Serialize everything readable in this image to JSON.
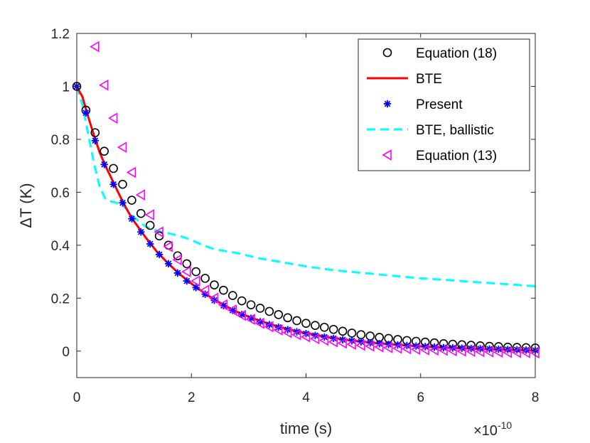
{
  "chart_data": {
    "type": "line",
    "xlabel": "time (s)",
    "ylabel": "ΔT (K)",
    "x_exponent": {
      "base": "×10",
      "power": "-10"
    },
    "xlim": [
      0,
      8
    ],
    "ylim": [
      -0.1,
      1.2
    ],
    "xticks": [
      0,
      2,
      4,
      6,
      8
    ],
    "xtick_labels": [
      "0",
      "2",
      "4",
      "6",
      "8"
    ],
    "yticks": [
      0,
      0.2,
      0.4,
      0.6,
      0.8,
      1.0,
      1.2
    ],
    "ytick_labels": [
      "0",
      "0.2",
      "0.4",
      "0.6",
      "0.8",
      "1",
      "1.2"
    ],
    "grid": false,
    "legend_position": "top-right",
    "series": [
      {
        "name": "Equation (18)",
        "style": "marker-circle",
        "color": "#000000",
        "x": [
          0,
          0.16,
          0.32,
          0.48,
          0.64,
          0.8,
          0.96,
          1.12,
          1.28,
          1.44,
          1.6,
          1.76,
          1.92,
          2.08,
          2.24,
          2.4,
          2.56,
          2.72,
          2.88,
          3.04,
          3.2,
          3.36,
          3.52,
          3.68,
          3.84,
          4.0,
          4.16,
          4.32,
          4.48,
          4.64,
          4.8,
          4.96,
          5.12,
          5.28,
          5.44,
          5.6,
          5.76,
          5.92,
          6.08,
          6.24,
          6.4,
          6.56,
          6.72,
          6.88,
          7.04,
          7.2,
          7.36,
          7.52,
          7.68,
          7.84,
          8.0
        ],
        "y": [
          1.0,
          0.91,
          0.825,
          0.755,
          0.69,
          0.63,
          0.57,
          0.52,
          0.475,
          0.435,
          0.4,
          0.36,
          0.33,
          0.3,
          0.275,
          0.25,
          0.23,
          0.21,
          0.19,
          0.175,
          0.162,
          0.15,
          0.138,
          0.126,
          0.115,
          0.105,
          0.097,
          0.09,
          0.082,
          0.075,
          0.068,
          0.062,
          0.057,
          0.052,
          0.048,
          0.044,
          0.04,
          0.037,
          0.034,
          0.031,
          0.028,
          0.026,
          0.024,
          0.022,
          0.02,
          0.018,
          0.017,
          0.015,
          0.014,
          0.013,
          0.012
        ]
      },
      {
        "name": "BTE",
        "style": "line-solid",
        "color": "#ff0000",
        "x": [
          0,
          0.1,
          0.2,
          0.3,
          0.4,
          0.5,
          0.6,
          0.7,
          0.8,
          0.9,
          1.0,
          1.2,
          1.4,
          1.6,
          1.8,
          2.0,
          2.2,
          2.4,
          2.6,
          2.8,
          3.0,
          3.2,
          3.4,
          3.6,
          3.8,
          4.0,
          4.4,
          4.8,
          5.2,
          5.6,
          6.0,
          6.4,
          6.8,
          7.2,
          7.6,
          8.0
        ],
        "y": [
          1.0,
          0.96,
          0.885,
          0.815,
          0.75,
          0.7,
          0.655,
          0.61,
          0.565,
          0.525,
          0.49,
          0.43,
          0.375,
          0.33,
          0.29,
          0.255,
          0.223,
          0.195,
          0.17,
          0.148,
          0.13,
          0.114,
          0.1,
          0.088,
          0.077,
          0.068,
          0.052,
          0.04,
          0.031,
          0.024,
          0.018,
          0.013,
          0.01,
          0.007,
          0.004,
          0.002
        ]
      },
      {
        "name": "Present",
        "style": "marker-star",
        "color": "#0000ff",
        "x": [
          0,
          0.16,
          0.32,
          0.48,
          0.64,
          0.8,
          0.96,
          1.12,
          1.28,
          1.44,
          1.6,
          1.76,
          1.92,
          2.08,
          2.24,
          2.4,
          2.56,
          2.72,
          2.88,
          3.04,
          3.2,
          3.36,
          3.52,
          3.68,
          3.84,
          4.0,
          4.16,
          4.32,
          4.48,
          4.64,
          4.8,
          4.96,
          5.12,
          5.28,
          5.44,
          5.6,
          5.76,
          5.92,
          6.08,
          6.24,
          6.4,
          6.56,
          6.72,
          6.88,
          7.04,
          7.2,
          7.36,
          7.52,
          7.68,
          7.84,
          8.0
        ],
        "y": [
          1.0,
          0.9,
          0.795,
          0.705,
          0.63,
          0.56,
          0.5,
          0.45,
          0.405,
          0.365,
          0.33,
          0.295,
          0.265,
          0.24,
          0.215,
          0.192,
          0.172,
          0.154,
          0.138,
          0.124,
          0.111,
          0.1,
          0.09,
          0.081,
          0.073,
          0.066,
          0.059,
          0.053,
          0.048,
          0.043,
          0.039,
          0.035,
          0.031,
          0.028,
          0.025,
          0.023,
          0.021,
          0.019,
          0.017,
          0.015,
          0.013,
          0.012,
          0.011,
          0.01,
          0.009,
          0.008,
          0.007,
          0.006,
          0.005,
          0.004,
          0.003
        ]
      },
      {
        "name": "BTE, ballistic",
        "style": "line-dashed",
        "color": "#00ffff",
        "x": [
          0,
          0.1,
          0.2,
          0.3,
          0.4,
          0.5,
          0.6,
          0.7,
          0.8,
          0.9,
          1.0,
          1.2,
          1.4,
          1.6,
          1.8,
          2.0,
          2.2,
          2.4,
          2.8,
          3.2,
          3.6,
          4.0,
          4.5,
          5.0,
          5.5,
          6.0,
          6.5,
          7.0,
          7.5,
          8.0
        ],
        "y": [
          1.0,
          0.93,
          0.82,
          0.71,
          0.62,
          0.575,
          0.565,
          0.56,
          0.55,
          0.53,
          0.505,
          0.47,
          0.455,
          0.445,
          0.435,
          0.42,
          0.4,
          0.385,
          0.37,
          0.35,
          0.335,
          0.32,
          0.305,
          0.295,
          0.285,
          0.275,
          0.268,
          0.26,
          0.253,
          0.245
        ]
      },
      {
        "name": "Equation (13)",
        "style": "marker-triangle-left",
        "color": "#ff00ff",
        "x": [
          0.32,
          0.48,
          0.64,
          0.8,
          0.96,
          1.12,
          1.28,
          1.44,
          1.6,
          1.76,
          1.92,
          2.08,
          2.24,
          2.4,
          2.56,
          2.72,
          2.88,
          3.04,
          3.2,
          3.36,
          3.52,
          3.68,
          3.84,
          4.0,
          4.16,
          4.32,
          4.48,
          4.64,
          4.8,
          4.96,
          5.12,
          5.28,
          5.44,
          5.6,
          5.76,
          5.92,
          6.08,
          6.24,
          6.4,
          6.56,
          6.72,
          6.88,
          7.04,
          7.2,
          7.36,
          7.52,
          7.68,
          7.84,
          8.0
        ],
        "y": [
          1.15,
          1.005,
          0.88,
          0.77,
          0.675,
          0.59,
          0.515,
          0.45,
          0.395,
          0.345,
          0.3,
          0.265,
          0.23,
          0.2,
          0.175,
          0.155,
          0.135,
          0.12,
          0.105,
          0.092,
          0.08,
          0.07,
          0.062,
          0.054,
          0.047,
          0.041,
          0.035,
          0.03,
          0.026,
          0.022,
          0.019,
          0.016,
          0.013,
          0.011,
          0.009,
          0.007,
          0.005,
          0.004,
          0.003,
          0.001,
          0.0,
          -0.001,
          -0.002,
          -0.003,
          -0.004,
          -0.005,
          -0.005,
          -0.006,
          -0.007
        ]
      }
    ]
  }
}
